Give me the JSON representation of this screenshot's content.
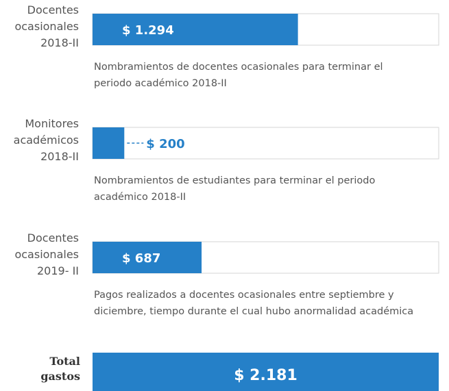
{
  "chart_data": {
    "type": "bar",
    "orientation": "horizontal",
    "color": "#2580c8",
    "categories": [
      "Docentes\nocasionales\n2018-II",
      "Monitores\nacadémicos\n2018-II",
      "Docentes\nocasionales\n2019- II"
    ],
    "values": [
      1294,
      200,
      687
    ],
    "value_labels": [
      "$ 1.294",
      "$ 200",
      "$ 687"
    ],
    "descriptions": [
      "Nombramientos de docentes ocasionales para terminar el\nperiodo académico 2018-II",
      "Nombramientos de estudiantes para terminar el periodo\nacadémico 2018-II",
      "Pagos realizados a docentes ocasionales entre septiembre y\ndiciembre, tiempo durante el cual hubo anormalidad académica"
    ],
    "total": {
      "label": "Total\ngastos",
      "value": 2181,
      "value_label": "$ 2.181"
    },
    "xlim": [
      0,
      2181
    ]
  }
}
